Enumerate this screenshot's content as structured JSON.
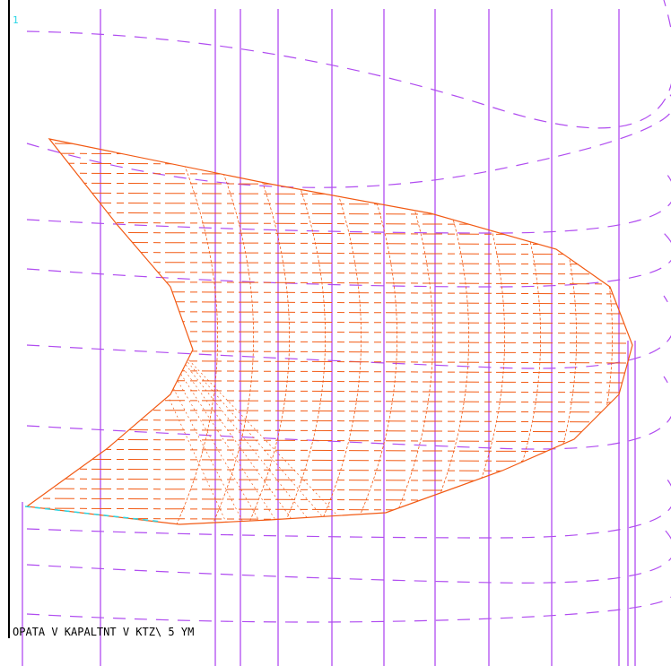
{
  "viewport": {
    "label": "1",
    "status_text": "OPATA V KAPALTNT V KTZ\\ 5 YM"
  }
}
